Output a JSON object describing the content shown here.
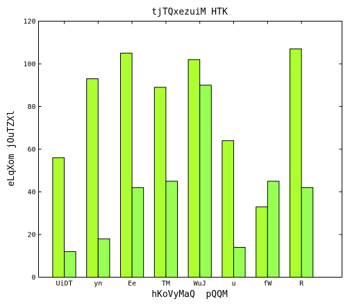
{
  "chart_data": {
    "type": "bar",
    "title": "tjTQxezuiM HTK",
    "xlabel": "hKoVyMaQ  pQQM",
    "ylabel": "eLqXom jOuTZXl",
    "ylim": [
      0,
      120
    ],
    "yticks": [
      0,
      20,
      40,
      60,
      80,
      100,
      120
    ],
    "categories": [
      "UiDT",
      "yn",
      "Ee",
      "TM",
      "WuJ",
      "u",
      "fW",
      "R"
    ],
    "grid": false,
    "series": [
      {
        "values": [
          56,
          93,
          105,
          89,
          102,
          64,
          33,
          107
        ],
        "color": "#adff2f"
      },
      {
        "values": [
          12,
          18,
          42,
          45,
          90,
          14,
          45,
          42
        ],
        "color": "#99ff55"
      }
    ]
  }
}
